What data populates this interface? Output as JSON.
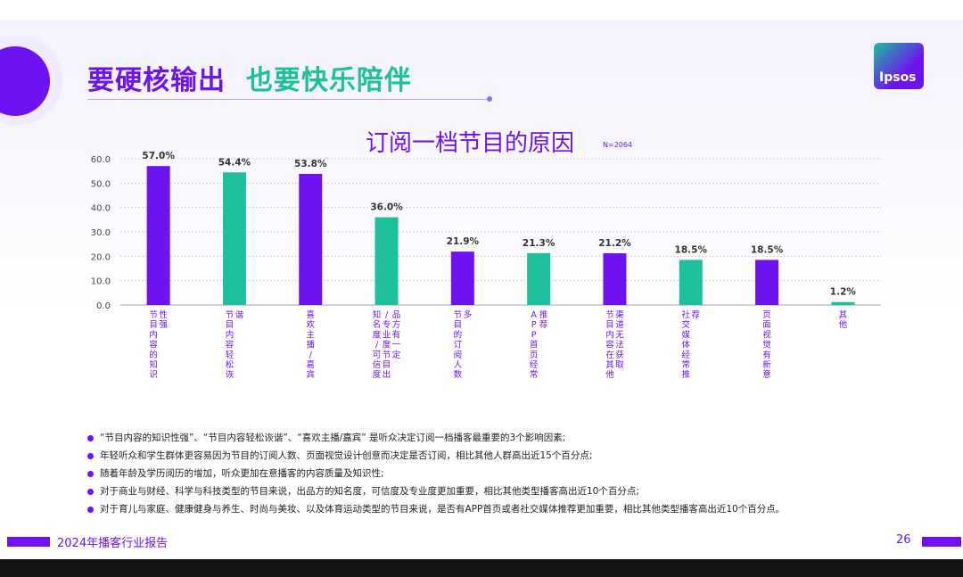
{
  "slide": {
    "title_part1": "要硬核输出",
    "title_part2": "也要快乐陪伴",
    "logo_text": "Ipsos",
    "footer_text": "2024年播客行业报告",
    "page_number": "26"
  },
  "colors": {
    "purple": "#6d13f0",
    "teal": "#1ebf9d",
    "grid": "#c9c4d8"
  },
  "chart_data": {
    "type": "bar",
    "title": "订阅一档节目的原因",
    "sample_note": "N=2064",
    "ylim": [
      0,
      60
    ],
    "y_ticks": [
      "0.0",
      "10.0",
      "20.0",
      "30.0",
      "40.0",
      "50.0",
      "60.0"
    ],
    "grid": true,
    "categories": [
      "节目内容的知识性强",
      "节目内容轻松诙谐",
      "喜欢主播/嘉宾",
      "知名度/可信度/专业度节目出品方有一定",
      "节目的订阅人数多",
      "APP首页经常推荐",
      "节目内容在其他渠道无法获取",
      "社交媒体经常推荐",
      "页面视觉有新意",
      "其他"
    ],
    "values": [
      57.0,
      54.4,
      53.8,
      36.0,
      21.9,
      21.3,
      21.2,
      18.5,
      18.5,
      1.2
    ],
    "value_labels": [
      "57.0%",
      "54.4%",
      "53.8%",
      "36.0%",
      "21.9%",
      "21.3%",
      "21.2%",
      "18.5%",
      "18.5%",
      "1.2%"
    ],
    "bar_colors": [
      "purple",
      "teal",
      "purple",
      "teal",
      "purple",
      "teal",
      "purple",
      "teal",
      "purple",
      "teal"
    ]
  },
  "bullets": [
    "“节目内容的知识性强”、“节目内容轻松诙谐”、“喜欢主播/嘉宾” 是听众决定订阅一档播客最重要的3个影响因素;",
    "年轻听众和学生群体更容易因为节目的订阅人数、页面视觉设计创意而决定是否订阅，相比其他人群高出近15个百分点;",
    "随着年龄及学历阅历的增加，听众更加在意播客的内容质量及知识性;",
    "对于商业与财经、科学与科技类型的节目来说，出品方的知名度，可信度及专业度更加重要，相比其他类型播客高出近10个百分点;",
    "对于育儿与家庭、健康健身与养生、时尚与美妆、以及体育运动类型的节目来说，是否有APP首页或者社交媒体推荐更加重要，相比其他类型播客高出近10个百分点。"
  ]
}
